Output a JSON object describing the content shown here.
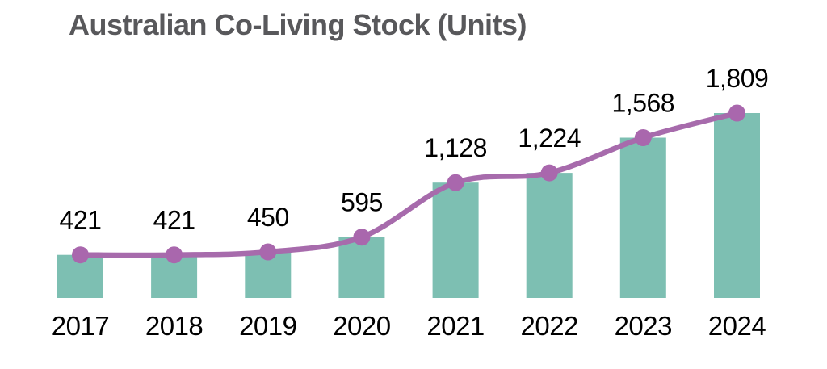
{
  "chart_data": {
    "type": "bar",
    "overlay": "smoothed-line-with-markers",
    "title": "Australian Co-Living Stock (Units)",
    "categories": [
      "2017",
      "2018",
      "2019",
      "2020",
      "2021",
      "2022",
      "2023",
      "2024"
    ],
    "values": [
      421,
      421,
      450,
      595,
      1128,
      1224,
      1568,
      1809
    ],
    "value_labels": [
      "421",
      "421",
      "450",
      "595",
      "1,128",
      "1,224",
      "1,568",
      "1,809"
    ],
    "xlabel": "",
    "ylabel": "",
    "ylim": [
      0,
      1809
    ],
    "grid": false,
    "legend": false
  },
  "colors": {
    "bar": "#7dbfb2",
    "line": "#a76bac",
    "marker": "#a967ad",
    "title": "#58585b",
    "data_label": "#000000",
    "axis_label": "#000000",
    "background": "#ffffff"
  }
}
